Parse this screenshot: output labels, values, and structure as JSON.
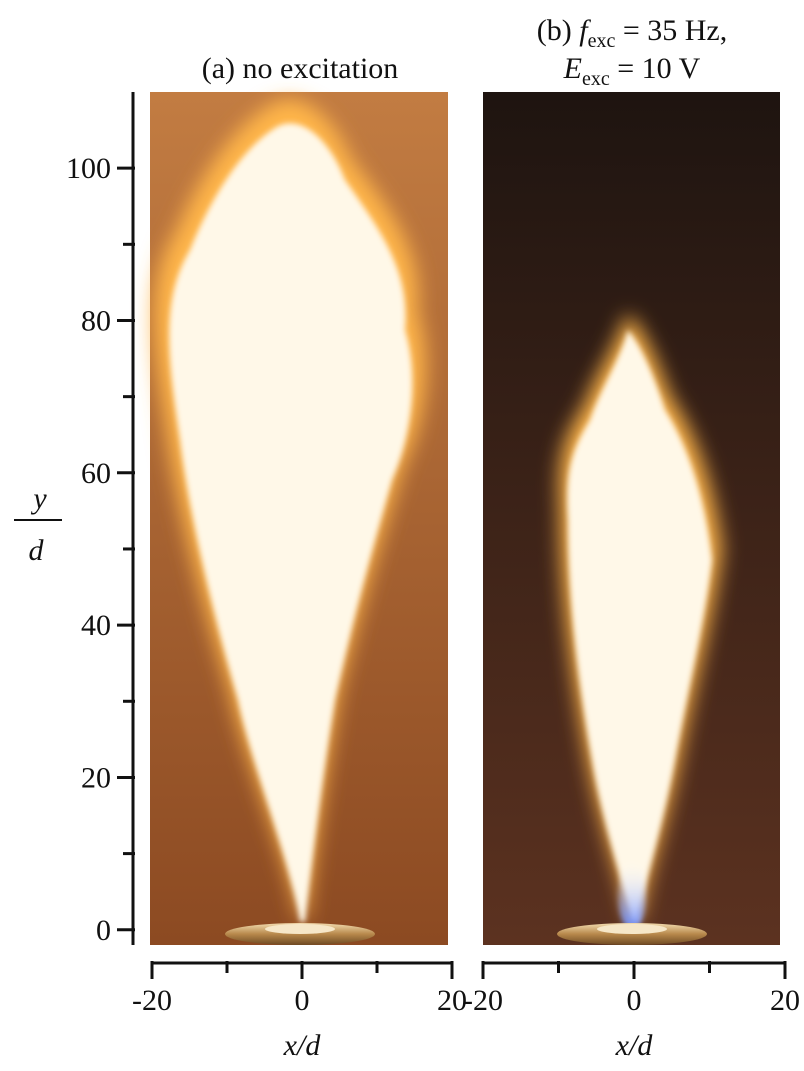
{
  "chart_data": [
    {
      "type": "image",
      "title": [
        [
          {
            "text": "(a) no excitation"
          }
        ]
      ],
      "xlim": [
        -20,
        20
      ],
      "xticks": [
        -20,
        0,
        20
      ],
      "xminor": [
        -10,
        10
      ],
      "xlabel": "x/d",
      "ylim": [
        -2,
        110
      ],
      "yticks": [
        0,
        20,
        40,
        60,
        80,
        100
      ],
      "yminor": [
        10,
        30,
        50,
        70,
        90
      ],
      "ylabel": {
        "numerator": "y",
        "denominator": "d"
      },
      "background": [
        "#c27c42",
        "#8c4a22"
      ]
    },
    {
      "type": "image",
      "title": [
        [
          {
            "text": "(b) "
          },
          {
            "text": "f",
            "italic": true
          },
          {
            "text": "exc",
            "sub": true
          },
          {
            "text": " = 35 Hz,"
          }
        ],
        [
          {
            "text": "E",
            "italic": true
          },
          {
            "text": "exc",
            "sub": true
          },
          {
            "text": " = 10 V"
          }
        ]
      ],
      "xlim": [
        -20,
        20
      ],
      "xticks": [
        -20,
        0,
        20
      ],
      "xminor": [
        -10,
        10
      ],
      "xlabel": "x/d",
      "background": [
        "#1e1410",
        "#5c3220"
      ]
    }
  ]
}
